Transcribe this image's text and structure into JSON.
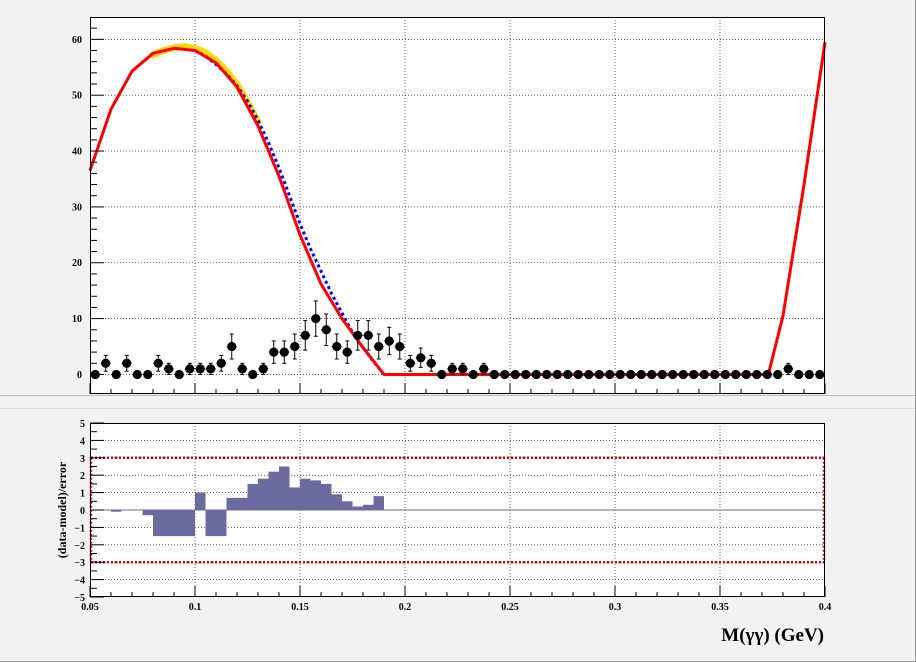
{
  "chart_data": [
    {
      "type": "scatter",
      "panel": "top",
      "title": "",
      "xlabel": "",
      "ylabel": "",
      "xlim": [
        0.05,
        0.4
      ],
      "ylim": [
        -3.5,
        64
      ],
      "grid": true,
      "y_ticks": [
        "0",
        "10",
        "20",
        "30",
        "40",
        "50",
        "60"
      ],
      "y_tick_values": [
        0,
        10,
        20,
        30,
        40,
        50,
        60
      ],
      "x_ticks": [
        0.05,
        0.1,
        0.15,
        0.2,
        0.25,
        0.3,
        0.35,
        0.4
      ],
      "data_points": {
        "name": "data",
        "x": [
          0.0525,
          0.0575,
          0.0625,
          0.0675,
          0.0725,
          0.0775,
          0.0825,
          0.0875,
          0.0925,
          0.0975,
          0.1025,
          0.1075,
          0.1125,
          0.1175,
          0.1225,
          0.1275,
          0.1325,
          0.1375,
          0.1425,
          0.1475,
          0.1525,
          0.1575,
          0.1625,
          0.1675,
          0.1725,
          0.1775,
          0.1825,
          0.1875,
          0.1925,
          0.1975,
          0.2025,
          0.2075,
          0.2125,
          0.2175,
          0.2225,
          0.2275,
          0.2325,
          0.2375,
          0.2425,
          0.2475,
          0.2525,
          0.2575,
          0.2625,
          0.2675,
          0.2725,
          0.2775,
          0.2825,
          0.2875,
          0.2925,
          0.2975,
          0.3025,
          0.3075,
          0.3125,
          0.3175,
          0.3225,
          0.3275,
          0.3325,
          0.3375,
          0.3425,
          0.3475,
          0.3525,
          0.3575,
          0.3625,
          0.3675,
          0.3725,
          0.3775,
          0.3825,
          0.3875,
          0.3925,
          0.3975
        ],
        "y": [
          0,
          2,
          0,
          2,
          0,
          0,
          2,
          1,
          0,
          1,
          1,
          1,
          2,
          5,
          1,
          0,
          1,
          4,
          4,
          5,
          7,
          10,
          8,
          5,
          4,
          7,
          7,
          5,
          6,
          5,
          2,
          3,
          2,
          0,
          1,
          1,
          0,
          1,
          0,
          0,
          0,
          0,
          0,
          0,
          0,
          0,
          0,
          0,
          0,
          0,
          0,
          0,
          0,
          0,
          0,
          0,
          0,
          0,
          0,
          0,
          0,
          0,
          0,
          0,
          0,
          0,
          1,
          0,
          0,
          0
        ]
      },
      "series": [
        {
          "name": "model-total",
          "color": "#ff0000",
          "style": "solid",
          "x": [
            0.05,
            0.06,
            0.07,
            0.08,
            0.09,
            0.1,
            0.11,
            0.12,
            0.13,
            0.14,
            0.15,
            0.16,
            0.17,
            0.18,
            0.19,
            0.197,
            0.373,
            0.38,
            0.39,
            0.4
          ],
          "y": [
            36.5,
            47.5,
            54.3,
            57.5,
            58.4,
            58.0,
            55.8,
            51.5,
            44.5,
            35.5,
            25.0,
            16.2,
            10.0,
            4.8,
            0,
            0,
            0,
            10.5,
            34,
            59.5
          ]
        },
        {
          "name": "model-background",
          "color": "#0000ff",
          "style": "dashed",
          "x": [
            0.1,
            0.105,
            0.11,
            0.115,
            0.12,
            0.125,
            0.13,
            0.135,
            0.14,
            0.145,
            0.15,
            0.155,
            0.16,
            0.165,
            0.17,
            0.175,
            0.18,
            0.185,
            0.19
          ],
          "y": [
            58.0,
            57.0,
            55.5,
            53.8,
            51.7,
            48.9,
            45.5,
            41.5,
            37.0,
            32.0,
            27.0,
            22.5,
            18.5,
            14.5,
            11.0,
            7.5,
            4.8,
            2.3,
            0
          ]
        },
        {
          "name": "model-error-band",
          "color": "#ffd700",
          "style": "band",
          "x": [
            0.08,
            0.085,
            0.09,
            0.095,
            0.1,
            0.105,
            0.11,
            0.115,
            0.12,
            0.125,
            0.13
          ],
          "y": [
            57.2,
            58.0,
            58.5,
            58.7,
            58.4,
            57.6,
            56.2,
            54.3,
            51.9,
            48.8,
            45.3
          ]
        }
      ]
    },
    {
      "type": "bar",
      "panel": "bottom",
      "title": "",
      "xlabel": "M(γγ) (GeV)",
      "ylabel": "(data-model)/error",
      "xlim": [
        0.05,
        0.4
      ],
      "ylim": [
        -5,
        5
      ],
      "grid": true,
      "x_tick_labels": [
        "0.05",
        "0.1",
        "0.15",
        "0.2",
        "0.25",
        "0.3",
        "0.35",
        "0.4"
      ],
      "x_tick_values": [
        0.05,
        0.1,
        0.15,
        0.2,
        0.25,
        0.3,
        0.35,
        0.4
      ],
      "y_tick_labels": [
        "−5",
        "−4",
        "−3",
        "−2",
        "−1",
        "0",
        "1",
        "2",
        "3",
        "4",
        "5"
      ],
      "y_tick_values": [
        -5,
        -4,
        -3,
        -2,
        -1,
        0,
        1,
        2,
        3,
        4,
        5
      ],
      "reference_lines": [
        3,
        -3
      ],
      "bar_color": "#6b6b9f",
      "bins": {
        "x": [
          0.0525,
          0.0575,
          0.0625,
          0.0675,
          0.0725,
          0.0775,
          0.0825,
          0.0875,
          0.0925,
          0.0975,
          0.1025,
          0.1075,
          0.1125,
          0.1175,
          0.1225,
          0.1275,
          0.1325,
          0.1375,
          0.1425,
          0.1475,
          0.1525,
          0.1575,
          0.1625,
          0.1675,
          0.1725,
          0.1775,
          0.1825,
          0.1875,
          0.1925,
          0.1975
        ],
        "values": [
          0,
          0,
          -0.1,
          0,
          0,
          -0.3,
          -1.5,
          -1.5,
          -1.5,
          -1.5,
          1.0,
          -1.5,
          -1.5,
          0.7,
          0.7,
          1.5,
          1.8,
          2.2,
          2.5,
          1.3,
          1.8,
          1.7,
          1.5,
          0.9,
          0.5,
          0.2,
          0.3,
          0.8,
          0,
          0
        ]
      }
    }
  ]
}
